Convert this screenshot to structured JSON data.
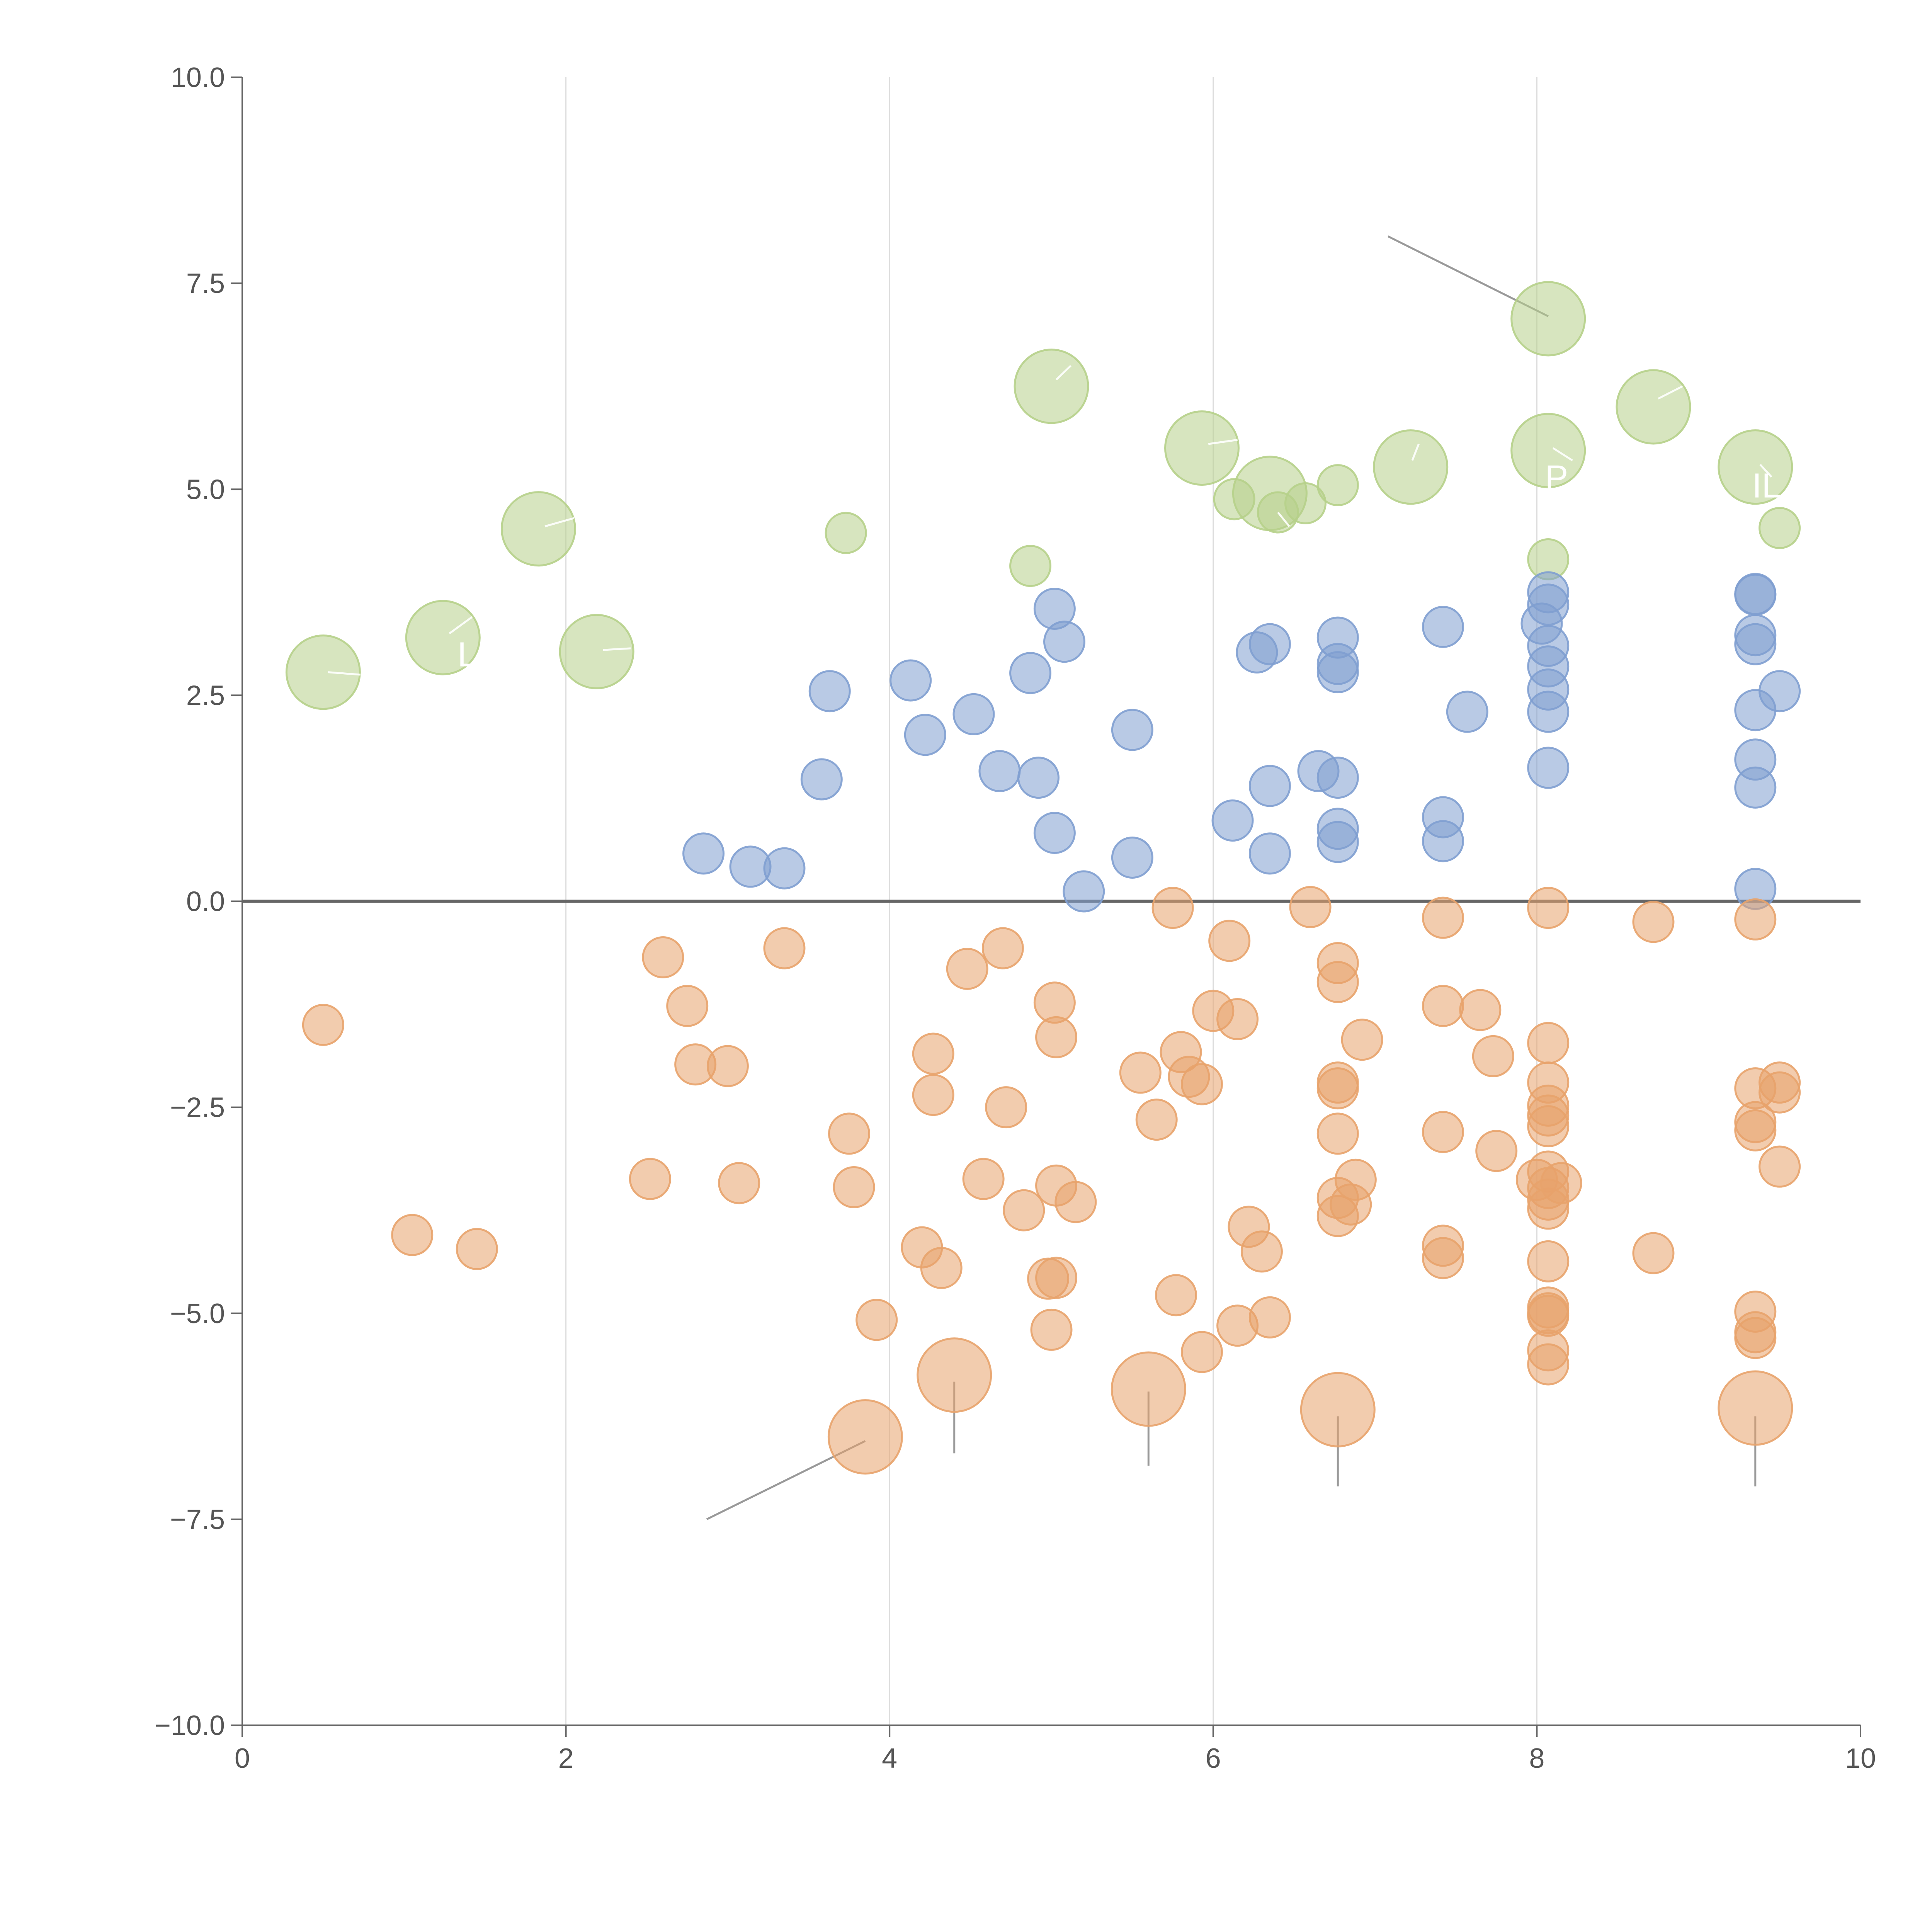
{
  "chart_data": {
    "type": "scatter",
    "title": "",
    "xlabel": "",
    "ylabel": "",
    "xlim": [
      0,
      10
    ],
    "ylim": [
      -10,
      10
    ],
    "x_ticks": [
      0,
      2,
      4,
      6,
      8,
      10
    ],
    "x_tick_labels": [
      "0",
      "2",
      "4",
      "6",
      "8",
      "10"
    ],
    "y_ticks": [
      10,
      7.5,
      5,
      2.5,
      0,
      -2.5,
      -5,
      -7.5,
      -10
    ],
    "y_tick_labels": [
      "10.0",
      "7.5",
      "5.0",
      "2.5",
      "0.0",
      "−2.5",
      "−5.0",
      "−7.5",
      "−10.0"
    ],
    "vertical_gridlines": [
      2,
      4,
      6,
      8
    ],
    "zero_line": 0,
    "colors": {
      "green": "#b6d08a",
      "blue": "#7f9fd0",
      "orange": "#e8a36c",
      "axis": "#666666",
      "grid": "#dddddd",
      "leader": "#999999"
    },
    "series": [
      {
        "name": "green",
        "color": "#b6d08a",
        "points": [
          [
            0.5,
            2.78,
            3
          ],
          [
            1.24,
            3.2,
            3
          ],
          [
            1.83,
            4.52,
            3
          ],
          [
            2.19,
            3.03,
            3
          ],
          [
            3.73,
            4.47,
            1
          ],
          [
            4.87,
            4.07,
            1
          ],
          [
            5.0,
            6.25,
            3
          ],
          [
            5.93,
            5.5,
            3
          ],
          [
            6.13,
            4.88,
            1
          ],
          [
            6.35,
            4.95,
            3
          ],
          [
            6.4,
            4.72,
            1
          ],
          [
            6.57,
            4.83,
            1
          ],
          [
            6.77,
            5.05,
            1
          ],
          [
            7.22,
            5.27,
            3
          ],
          [
            8.07,
            7.07,
            3
          ],
          [
            8.07,
            5.47,
            3
          ],
          [
            8.07,
            4.15,
            1
          ],
          [
            8.72,
            6.0,
            3
          ],
          [
            9.35,
            5.27,
            3
          ],
          [
            9.5,
            4.53,
            1
          ]
        ]
      },
      {
        "name": "blue",
        "color": "#7f9fd0",
        "points": [
          [
            2.85,
            0.58,
            1
          ],
          [
            3.14,
            0.42,
            1
          ],
          [
            3.35,
            0.4,
            1
          ],
          [
            3.58,
            1.48,
            1
          ],
          [
            3.63,
            2.55,
            1
          ],
          [
            4.13,
            2.68,
            1
          ],
          [
            4.22,
            2.02,
            1
          ],
          [
            4.52,
            2.27,
            1
          ],
          [
            4.68,
            1.58,
            1
          ],
          [
            4.87,
            2.77,
            1
          ],
          [
            4.92,
            1.5,
            1
          ],
          [
            5.02,
            3.55,
            1
          ],
          [
            5.02,
            0.83,
            1
          ],
          [
            5.08,
            3.15,
            1
          ],
          [
            5.2,
            0.12,
            1
          ],
          [
            5.5,
            2.08,
            1
          ],
          [
            5.5,
            0.53,
            1
          ],
          [
            6.12,
            0.98,
            1
          ],
          [
            6.27,
            3.02,
            1
          ],
          [
            6.35,
            3.12,
            1
          ],
          [
            6.35,
            1.4,
            1
          ],
          [
            6.35,
            0.58,
            1
          ],
          [
            6.65,
            1.58,
            1
          ],
          [
            6.77,
            3.2,
            1
          ],
          [
            6.77,
            2.88,
            1
          ],
          [
            6.77,
            2.78,
            1
          ],
          [
            6.77,
            1.5,
            1
          ],
          [
            6.77,
            0.88,
            1
          ],
          [
            6.77,
            0.72,
            1
          ],
          [
            7.42,
            3.33,
            1
          ],
          [
            7.42,
            1.02,
            1
          ],
          [
            7.42,
            0.73,
            1
          ],
          [
            7.57,
            2.3,
            1
          ],
          [
            8.03,
            3.37,
            1
          ],
          [
            8.07,
            3.75,
            1
          ],
          [
            8.07,
            3.6,
            1
          ],
          [
            8.07,
            3.1,
            1
          ],
          [
            8.07,
            2.85,
            1
          ],
          [
            8.07,
            2.57,
            1
          ],
          [
            8.07,
            2.3,
            1
          ],
          [
            8.07,
            1.62,
            1
          ],
          [
            9.35,
            3.73,
            1
          ],
          [
            9.35,
            3.72,
            1
          ],
          [
            9.35,
            3.23,
            1
          ],
          [
            9.35,
            3.12,
            1
          ],
          [
            9.35,
            2.32,
            1
          ],
          [
            9.35,
            1.72,
            1
          ],
          [
            9.35,
            1.38,
            1
          ],
          [
            9.35,
            0.15,
            1
          ],
          [
            9.5,
            2.55,
            1
          ]
        ]
      },
      {
        "name": "orange",
        "color": "#e8a36c",
        "points": [
          [
            0.5,
            -1.5,
            1
          ],
          [
            1.05,
            -4.05,
            1
          ],
          [
            1.45,
            -4.22,
            1
          ],
          [
            2.52,
            -3.37,
            1
          ],
          [
            2.6,
            -0.68,
            1
          ],
          [
            2.75,
            -1.27,
            1
          ],
          [
            2.8,
            -1.98,
            1
          ],
          [
            3.0,
            -2.0,
            1
          ],
          [
            3.07,
            -3.42,
            1
          ],
          [
            3.35,
            -0.57,
            1
          ],
          [
            3.75,
            -2.82,
            1
          ],
          [
            3.78,
            -3.47,
            1
          ],
          [
            3.85,
            -6.5,
            3
          ],
          [
            3.92,
            -5.08,
            1
          ],
          [
            4.2,
            -4.2,
            1
          ],
          [
            4.27,
            -1.85,
            1
          ],
          [
            4.27,
            -2.35,
            1
          ],
          [
            4.32,
            -4.45,
            1
          ],
          [
            4.4,
            -5.75,
            3
          ],
          [
            4.48,
            -0.82,
            1
          ],
          [
            4.58,
            -3.37,
            1
          ],
          [
            4.7,
            -0.57,
            1
          ],
          [
            4.72,
            -2.5,
            1
          ],
          [
            4.83,
            -3.75,
            1
          ],
          [
            4.98,
            -4.58,
            1
          ],
          [
            5.0,
            -5.2,
            1
          ],
          [
            5.02,
            -1.23,
            1
          ],
          [
            5.03,
            -4.57,
            1
          ],
          [
            5.03,
            -3.45,
            1
          ],
          [
            5.03,
            -1.65,
            1
          ],
          [
            5.15,
            -3.65,
            1
          ],
          [
            5.55,
            -2.08,
            1
          ],
          [
            5.6,
            -5.92,
            3
          ],
          [
            5.65,
            -2.65,
            1
          ],
          [
            5.75,
            -0.08,
            1
          ],
          [
            5.77,
            -4.78,
            1
          ],
          [
            5.8,
            -1.83,
            1
          ],
          [
            5.85,
            -2.13,
            1
          ],
          [
            5.93,
            -2.22,
            1
          ],
          [
            5.93,
            -5.47,
            1
          ],
          [
            6.0,
            -1.33,
            1
          ],
          [
            6.1,
            -0.48,
            1
          ],
          [
            6.15,
            -1.43,
            1
          ],
          [
            6.15,
            -5.15,
            1
          ],
          [
            6.22,
            -3.95,
            1
          ],
          [
            6.3,
            -4.25,
            1
          ],
          [
            6.35,
            -5.05,
            1
          ],
          [
            6.6,
            -0.07,
            1
          ],
          [
            6.77,
            -0.75,
            1
          ],
          [
            6.77,
            -0.98,
            1
          ],
          [
            6.77,
            -2.2,
            1
          ],
          [
            6.77,
            -2.27,
            1
          ],
          [
            6.77,
            -2.82,
            1
          ],
          [
            6.77,
            -3.6,
            1
          ],
          [
            6.77,
            -3.82,
            1
          ],
          [
            6.77,
            -6.17,
            3
          ],
          [
            6.85,
            -3.68,
            1
          ],
          [
            6.88,
            -3.38,
            1
          ],
          [
            6.92,
            -1.68,
            1
          ],
          [
            7.42,
            -0.2,
            1
          ],
          [
            7.42,
            -1.27,
            1
          ],
          [
            7.42,
            -2.8,
            1
          ],
          [
            7.42,
            -4.18,
            1
          ],
          [
            7.42,
            -4.33,
            1
          ],
          [
            7.65,
            -1.32,
            1
          ],
          [
            7.73,
            -1.88,
            1
          ],
          [
            7.75,
            -3.03,
            1
          ],
          [
            8.0,
            -3.38,
            1
          ],
          [
            8.07,
            -0.08,
            1
          ],
          [
            8.07,
            -1.72,
            1
          ],
          [
            8.07,
            -2.2,
            1
          ],
          [
            8.07,
            -2.48,
            1
          ],
          [
            8.07,
            -2.6,
            1
          ],
          [
            8.07,
            -2.73,
            1
          ],
          [
            8.07,
            -3.28,
            1
          ],
          [
            8.07,
            -3.48,
            1
          ],
          [
            8.07,
            -3.62,
            1
          ],
          [
            8.07,
            -3.73,
            1
          ],
          [
            8.07,
            -4.37,
            1
          ],
          [
            8.07,
            -4.93,
            1
          ],
          [
            8.07,
            -5.0,
            1
          ],
          [
            8.07,
            -5.03,
            1
          ],
          [
            8.07,
            -5.45,
            1
          ],
          [
            8.07,
            -5.62,
            1
          ],
          [
            8.15,
            -3.42,
            1
          ],
          [
            8.72,
            -0.25,
            1
          ],
          [
            8.72,
            -4.27,
            1
          ],
          [
            9.35,
            -0.22,
            1
          ],
          [
            9.35,
            -2.27,
            1
          ],
          [
            9.35,
            -2.68,
            1
          ],
          [
            9.35,
            -2.78,
            1
          ],
          [
            9.35,
            -4.98,
            1
          ],
          [
            9.35,
            -5.23,
            1
          ],
          [
            9.35,
            -5.3,
            1
          ],
          [
            9.35,
            -6.15,
            3
          ],
          [
            9.5,
            -2.2,
            1
          ],
          [
            9.5,
            -2.32,
            1
          ],
          [
            9.5,
            -3.22,
            1
          ]
        ]
      }
    ],
    "leader_lines": [
      [
        7.08,
        8.07,
        8.07,
        7.1
      ],
      [
        2.87,
        -7.5,
        3.85,
        -6.55
      ],
      [
        4.4,
        -5.83,
        4.4,
        -6.7
      ],
      [
        5.6,
        -5.95,
        5.6,
        -6.85
      ],
      [
        6.77,
        -6.25,
        6.77,
        -7.1
      ],
      [
        9.35,
        -6.25,
        9.35,
        -7.1
      ]
    ],
    "white_leader_lines": [
      [
        0.53,
        2.78,
        0.73,
        2.75
      ],
      [
        1.28,
        3.25,
        1.42,
        3.45
      ],
      [
        1.87,
        4.55,
        2.05,
        4.65
      ],
      [
        2.23,
        3.05,
        2.4,
        3.07
      ],
      [
        5.03,
        6.33,
        5.12,
        6.5
      ],
      [
        5.97,
        5.55,
        6.15,
        5.6
      ],
      [
        6.4,
        4.72,
        6.47,
        4.55
      ],
      [
        7.23,
        5.35,
        7.27,
        5.55
      ],
      [
        8.1,
        5.5,
        8.22,
        5.35
      ],
      [
        8.75,
        6.1,
        8.9,
        6.25
      ],
      [
        9.38,
        5.3,
        9.45,
        5.15
      ]
    ],
    "annotation_labels": [
      {
        "text": "L",
        "x": 1.33,
        "y": 2.85
      },
      {
        "text": "P",
        "x": 8.05,
        "y": 5.0
      },
      {
        "text": "IL",
        "x": 9.33,
        "y": 4.9
      }
    ]
  }
}
